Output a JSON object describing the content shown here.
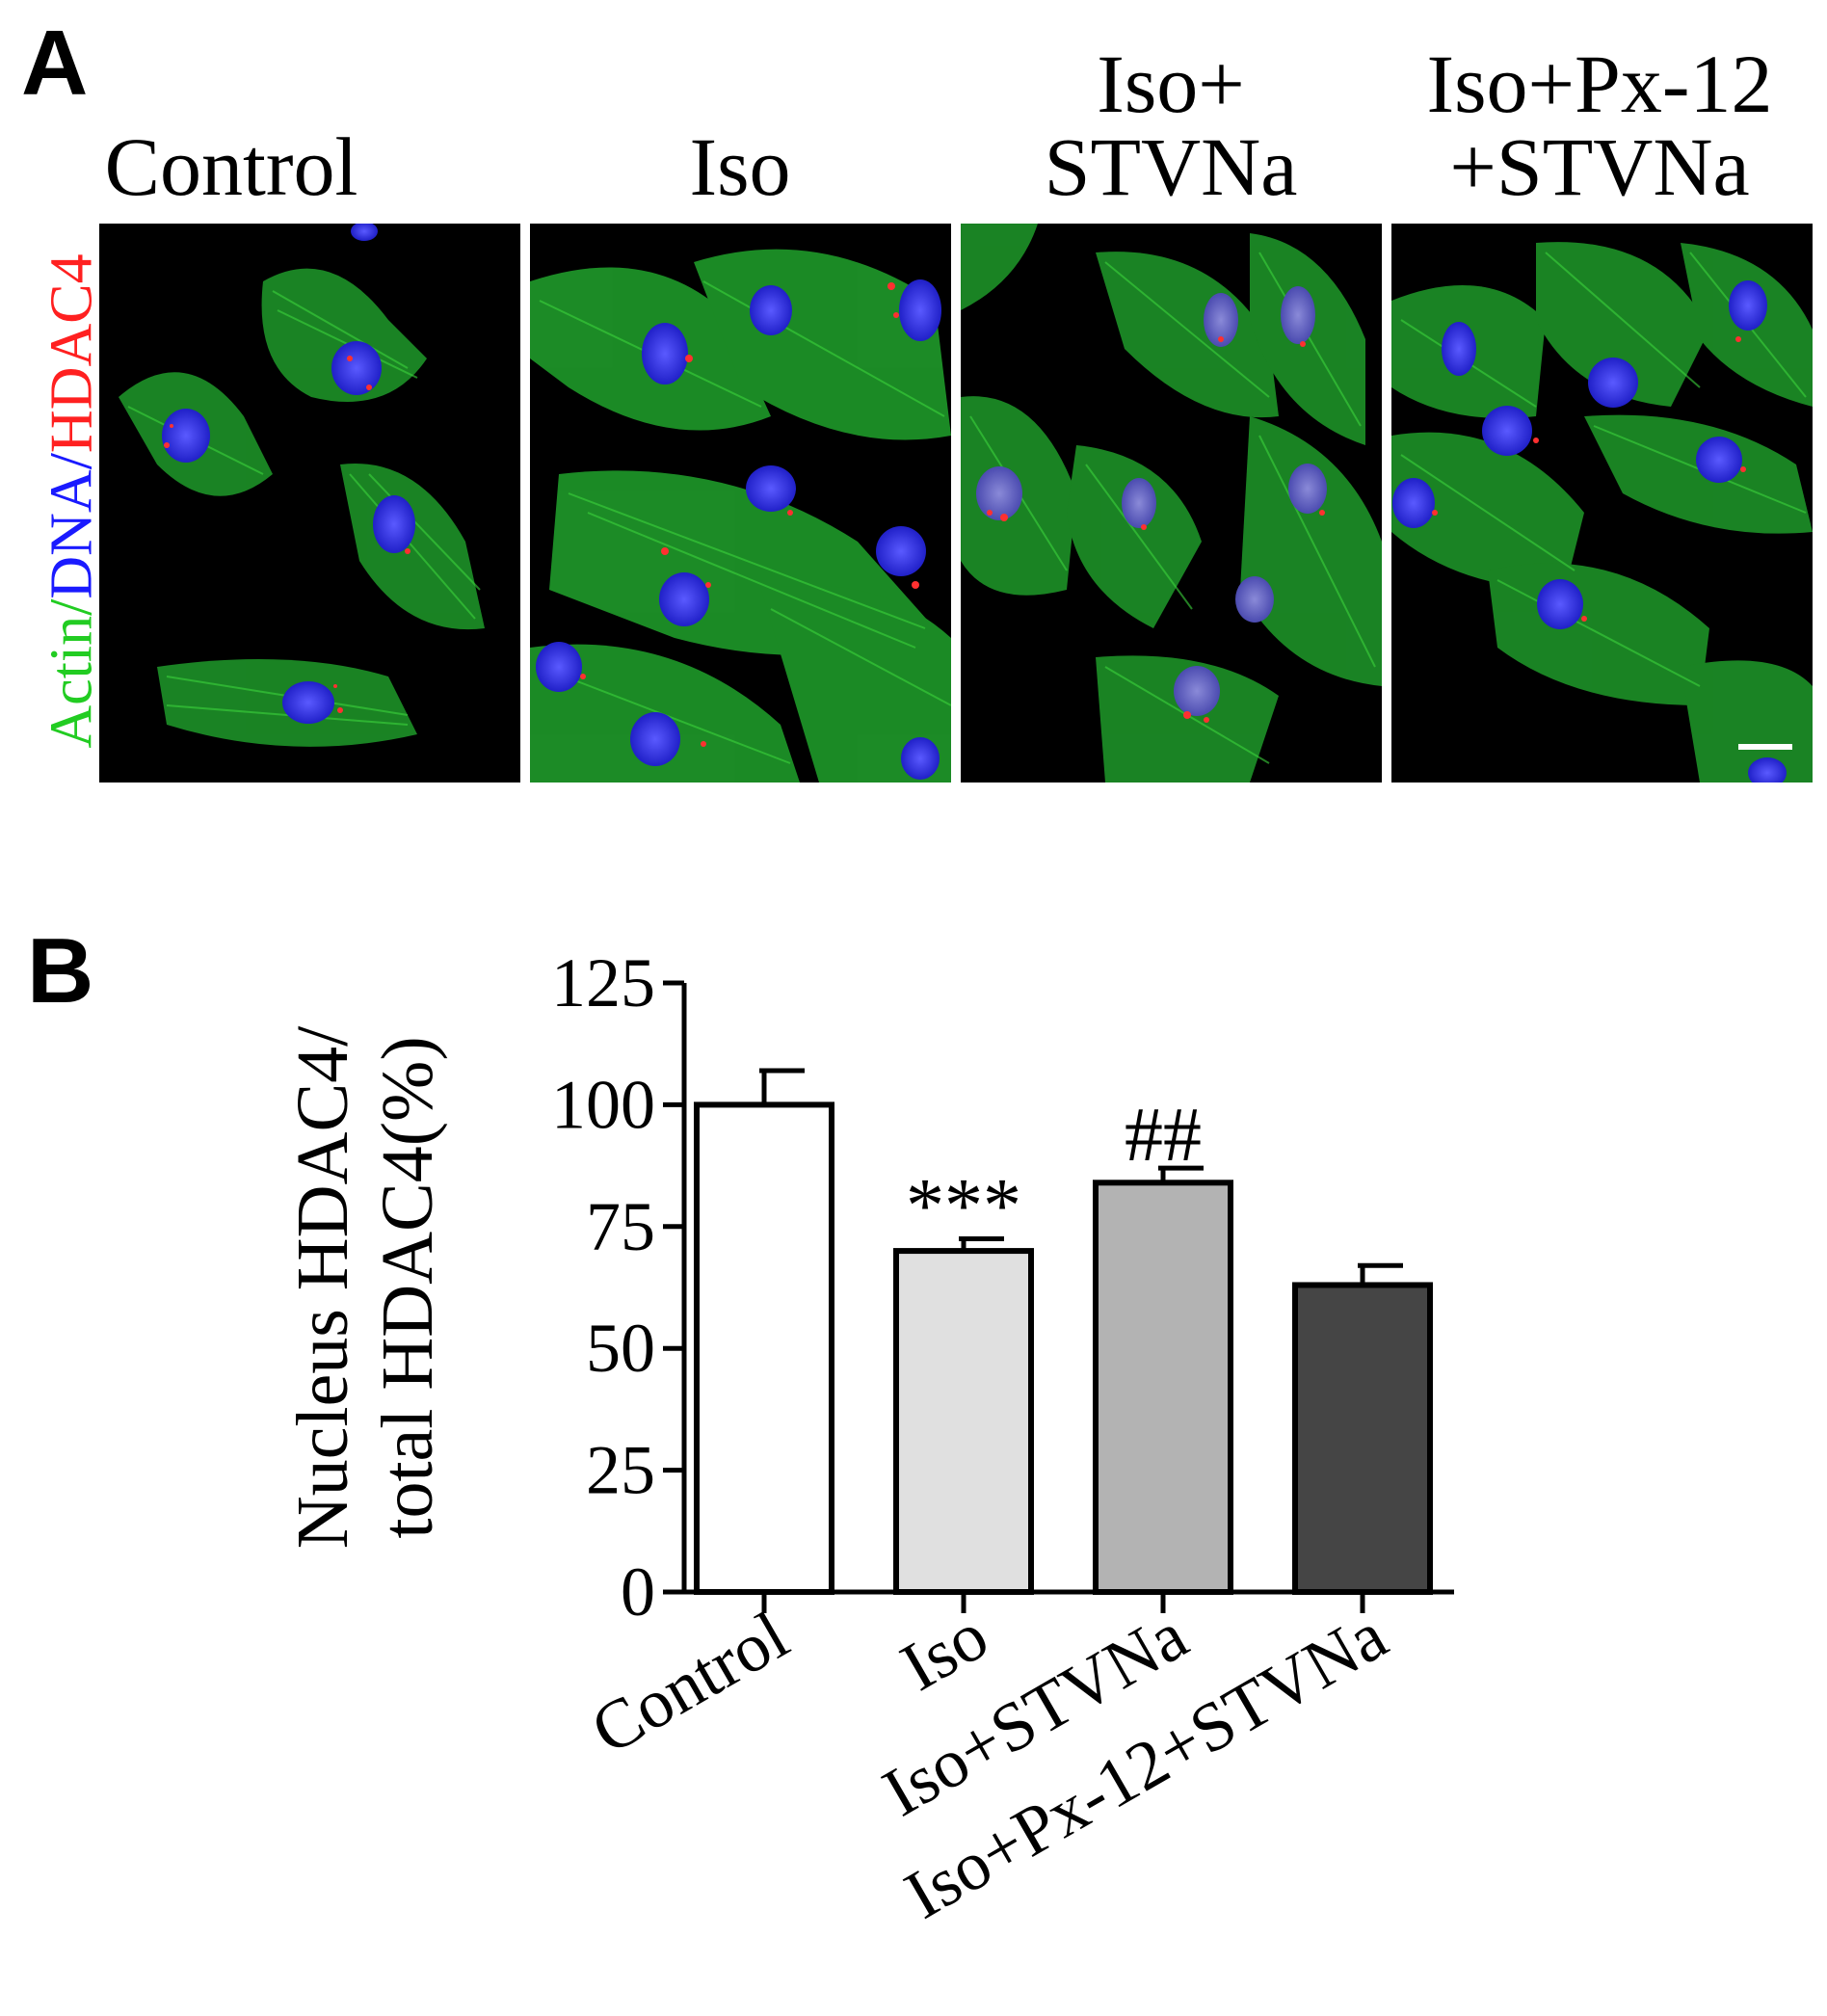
{
  "panel_a": {
    "letter": "A",
    "side_label": {
      "actin": "Actin",
      "dna": "DNA",
      "hdac4": "HDAC4",
      "sep": "/"
    },
    "conditions": [
      {
        "line1": "",
        "line2": "Control"
      },
      {
        "line1": "",
        "line2": "Iso"
      },
      {
        "line1": "Iso+",
        "line2": "STVNa"
      },
      {
        "line1": "Iso+Px-12",
        "line2": "+STVNa"
      }
    ]
  },
  "panel_b": {
    "letter": "B"
  },
  "colors": {
    "actin": "#22cc22",
    "dna": "#1a1aff",
    "hdac4": "#ff2020",
    "bar_fills": [
      "#ffffff",
      "#e0e0e0",
      "#b3b3b3",
      "#454545"
    ]
  },
  "chart_data": {
    "type": "bar",
    "categories": [
      "Control",
      "Iso",
      "Iso+STVNa",
      "Iso+Px-12+STVNa"
    ],
    "values": [
      100,
      70,
      84,
      63
    ],
    "errors": [
      7,
      2.5,
      3,
      4
    ],
    "annotations": [
      "",
      "***",
      "##",
      ""
    ],
    "ylabel_lines": [
      "Nucleus HDAC4/",
      "total HDAC4(%)"
    ],
    "ylim": [
      0,
      125
    ],
    "yticks": [
      "0",
      "25",
      "50",
      "75",
      "100",
      "125"
    ],
    "grid": false
  }
}
